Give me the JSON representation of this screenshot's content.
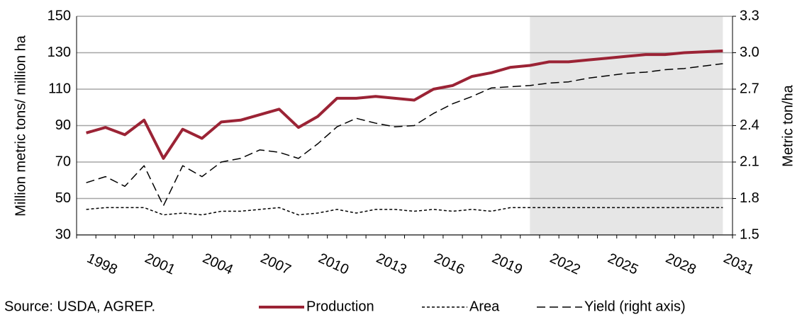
{
  "chart_data": {
    "type": "line",
    "categories": [
      "1998",
      null,
      null,
      "2001",
      null,
      null,
      "2004",
      null,
      null,
      "2007",
      null,
      null,
      "2010",
      null,
      null,
      "2013",
      null,
      null,
      "2016",
      null,
      null,
      "2019",
      null,
      null,
      "2022",
      null,
      null,
      "2025",
      null,
      null,
      "2028",
      null,
      null,
      "2031"
    ],
    "series": [
      {
        "name": "Production",
        "color": "#9b2335",
        "width": 4,
        "dash": "none",
        "values": [
          86,
          89,
          85,
          93,
          72,
          88,
          83,
          92,
          93,
          96,
          99,
          89,
          95,
          105,
          105,
          106,
          105,
          104,
          110,
          112,
          117,
          119,
          122,
          123,
          125,
          125,
          126,
          127,
          128,
          129,
          129,
          130,
          130.5,
          131
        ]
      },
      {
        "name": "Area",
        "color": "#000000",
        "width": 1.5,
        "dash": "4 3",
        "values": [
          44,
          45,
          45,
          45,
          41,
          42,
          41,
          43,
          43,
          44,
          45,
          41,
          42,
          44,
          42,
          44,
          44,
          43,
          44,
          43,
          44,
          43,
          45,
          45,
          45,
          45,
          45,
          45,
          45,
          45,
          45,
          45,
          45,
          45
        ]
      },
      {
        "name": "Yield (right axis)",
        "color": "#000000",
        "width": 1.5,
        "dash": "12 6",
        "axis": "y2",
        "values": [
          1.93,
          1.98,
          1.9,
          2.07,
          1.74,
          2.07,
          1.98,
          2.1,
          2.13,
          2.2,
          2.18,
          2.13,
          2.25,
          2.39,
          2.46,
          2.42,
          2.39,
          2.4,
          2.5,
          2.58,
          2.64,
          2.71,
          2.72,
          2.73,
          2.75,
          2.76,
          2.79,
          2.81,
          2.83,
          2.84,
          2.86,
          2.87,
          2.89,
          2.91
        ]
      }
    ],
    "ylabel": "Million metric tons/ million ha",
    "y2label": "Metric ton/ha",
    "ylim": [
      30,
      150
    ],
    "yticks": [
      30,
      50,
      70,
      90,
      110,
      130,
      150
    ],
    "y2lim": [
      1.5,
      3.3
    ],
    "y2ticks": [
      {
        "value": 1.5,
        "label": "1.5"
      },
      {
        "value": 1.8,
        "label": "1.8"
      },
      {
        "value": 2.1,
        "label": "2.1"
      },
      {
        "value": 2.4,
        "label": "2.4"
      },
      {
        "value": 2.7,
        "label": "2.7"
      },
      {
        "value": 3.0,
        "label": "3.0"
      },
      {
        "value": 3.3,
        "label": "3.3"
      }
    ],
    "grid": true,
    "shade_start_index": 23,
    "shade_color": "#e6e6e6",
    "source": "Source: USDA, AGREP."
  }
}
